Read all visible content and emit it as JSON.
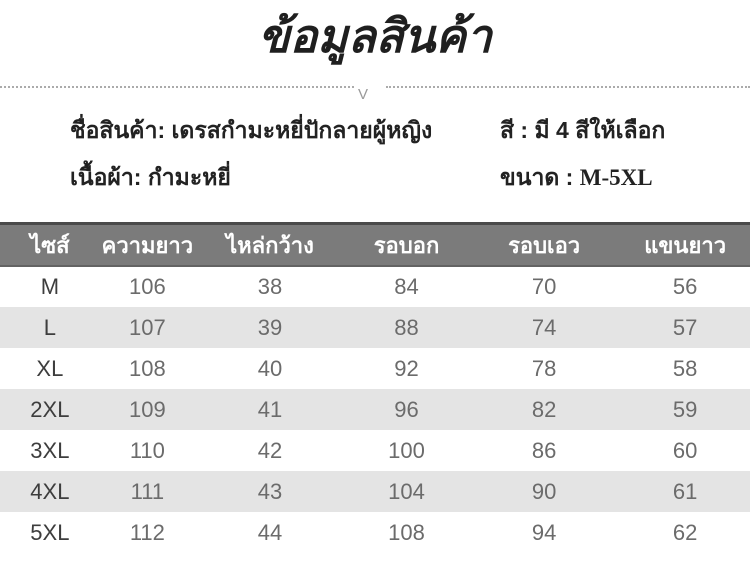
{
  "page": {
    "title": "ข้อมูลสินค้า"
  },
  "divider": {
    "arrow_glyph": "V"
  },
  "info": {
    "left": [
      {
        "label": "ชื่อสินค้า:",
        "value": "เดรสกำมะหยี่ปักลายผู้หญิง"
      },
      {
        "label": "เนื้อผ้า:",
        "value": "กำมะหยี่"
      }
    ],
    "right": [
      {
        "label": "สี :",
        "value": "มี 4 สีให้เลือก"
      },
      {
        "label": "ขนาด :",
        "value": "M-5XL"
      }
    ]
  },
  "size_chart": {
    "headers": [
      "ไซส์",
      "ความยาว",
      "ไหล่กว้าง",
      "รอบอก",
      "รอบเอว",
      "แขนยาว"
    ],
    "rows": [
      {
        "size": "M",
        "values": [
          "106",
          "38",
          "84",
          "70",
          "56"
        ]
      },
      {
        "size": "L",
        "values": [
          "107",
          "39",
          "88",
          "74",
          "57"
        ]
      },
      {
        "size": "XL",
        "values": [
          "108",
          "40",
          "92",
          "78",
          "58"
        ]
      },
      {
        "size": "2XL",
        "values": [
          "109",
          "41",
          "96",
          "82",
          "59"
        ]
      },
      {
        "size": "3XL",
        "values": [
          "110",
          "42",
          "100",
          "86",
          "60"
        ]
      },
      {
        "size": "4XL",
        "values": [
          "111",
          "43",
          "104",
          "90",
          "61"
        ]
      },
      {
        "size": "5XL",
        "values": [
          "112",
          "44",
          "108",
          "94",
          "62"
        ]
      }
    ]
  },
  "colors": {
    "title_text": "#1f1f1f",
    "info_text": "#222222",
    "header_background": "#7b7b7b",
    "header_top_border": "#4a4a4a",
    "header_text": "#ffffff",
    "stripe_row": "#e4e4e4",
    "cell_text": "#6b6b6b",
    "dotted_divider": "#ababab"
  }
}
